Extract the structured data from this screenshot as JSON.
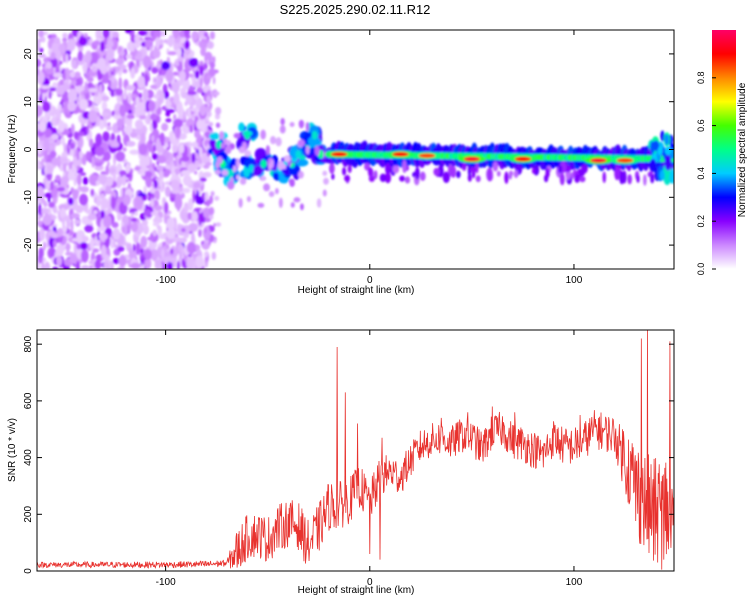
{
  "page_title": "S225.2025.290.02.11.R12",
  "chart_data": [
    {
      "type": "heatmap",
      "title": "S225.2025.290.02.11.R12",
      "xlabel": "Height of straight line (km)",
      "ylabel": "Frequency (Hz)",
      "xlim": [
        -163,
        149
      ],
      "ylim": [
        -25,
        25
      ],
      "xticks": [
        -100,
        0,
        100
      ],
      "yticks": [
        -20,
        -10,
        0,
        10,
        20
      ],
      "colorbar": {
        "label": "Normalized spectral amplitude",
        "range": [
          0,
          1
        ],
        "ticks": [
          0.0,
          0.2,
          0.4,
          0.6,
          0.8
        ],
        "colors": [
          "#ffffff",
          "#cc88ff",
          "#8800ff",
          "#0000ff",
          "#00ccff",
          "#00ff88",
          "#44ff00",
          "#ffff00",
          "#ff8800",
          "#ff0000",
          "#ff0066"
        ]
      },
      "noise_region_x": [
        -163,
        -78
      ],
      "features": [
        {
          "name": "noise_scatter",
          "x_range": [
            -163,
            -78
          ],
          "f_range": [
            -25,
            25
          ],
          "amplitude": 0.1
        },
        {
          "name": "early_blobs",
          "points": [
            [
              -74,
              1
            ],
            [
              -72,
              -3
            ],
            [
              -68,
              -5
            ],
            [
              -60,
              3
            ],
            [
              -58,
              -4
            ],
            [
              -52,
              -3
            ],
            [
              -44,
              -4
            ],
            [
              -38,
              -3
            ],
            [
              -35,
              -1
            ],
            [
              -30,
              1
            ],
            [
              -27,
              3
            ],
            [
              -24,
              -1
            ]
          ]
        },
        {
          "name": "main_track",
          "x_range": [
            -20,
            149
          ],
          "f_start": -1,
          "f_end": -2,
          "amplitude": 0.6
        },
        {
          "name": "peaks",
          "points": [
            [
              -15,
              -1,
              0.9
            ],
            [
              15,
              -1,
              0.9
            ],
            [
              28,
              -1.3,
              0.85
            ],
            [
              50,
              -2,
              0.95
            ],
            [
              75,
              -2,
              0.9
            ],
            [
              112,
              -2.3,
              0.95
            ],
            [
              125,
              -2.3,
              0.85
            ]
          ]
        }
      ]
    },
    {
      "type": "line",
      "xlabel": "Height of straight line (km)",
      "ylabel": "SNR (10 * v/v)",
      "xlim": [
        -163,
        149
      ],
      "ylim": [
        0,
        850
      ],
      "xticks": [
        -100,
        0,
        100
      ],
      "yticks": [
        0,
        200,
        400,
        600,
        800
      ],
      "color": "#e8322e",
      "control_points": [
        [
          -163,
          22
        ],
        [
          -140,
          22
        ],
        [
          -100,
          22
        ],
        [
          -80,
          24
        ],
        [
          -70,
          28
        ],
        [
          -65,
          70
        ],
        [
          -60,
          120
        ],
        [
          -55,
          130
        ],
        [
          -50,
          110
        ],
        [
          -45,
          150
        ],
        [
          -40,
          170
        ],
        [
          -35,
          160
        ],
        [
          -30,
          90
        ],
        [
          -25,
          150
        ],
        [
          -20,
          230
        ],
        [
          -15,
          230
        ],
        [
          -10,
          250
        ],
        [
          -5,
          300
        ],
        [
          0,
          240
        ],
        [
          5,
          330
        ],
        [
          10,
          350
        ],
        [
          15,
          330
        ],
        [
          20,
          390
        ],
        [
          25,
          440
        ],
        [
          30,
          460
        ],
        [
          35,
          470
        ],
        [
          40,
          450
        ],
        [
          45,
          480
        ],
        [
          50,
          470
        ],
        [
          55,
          430
        ],
        [
          60,
          490
        ],
        [
          65,
          500
        ],
        [
          70,
          460
        ],
        [
          75,
          450
        ],
        [
          80,
          430
        ],
        [
          85,
          410
        ],
        [
          90,
          470
        ],
        [
          95,
          440
        ],
        [
          100,
          440
        ],
        [
          105,
          460
        ],
        [
          110,
          500
        ],
        [
          115,
          490
        ],
        [
          120,
          480
        ],
        [
          125,
          400
        ],
        [
          130,
          300
        ],
        [
          135,
          230
        ],
        [
          140,
          200
        ],
        [
          145,
          220
        ],
        [
          149,
          180
        ]
      ],
      "spikes": [
        [
          -16,
          790
        ],
        [
          -12,
          630
        ],
        [
          -6,
          520
        ],
        [
          6,
          470
        ],
        [
          35,
          540
        ],
        [
          48,
          560
        ],
        [
          60,
          580
        ],
        [
          71,
          560
        ],
        [
          103,
          550
        ],
        [
          112,
          540
        ],
        [
          122,
          470
        ],
        [
          133,
          820
        ],
        [
          136,
          850
        ],
        [
          141,
          760
        ],
        [
          147,
          810
        ],
        [
          5,
          40
        ],
        [
          0,
          60
        ],
        [
          141,
          30
        ],
        [
          144,
          40
        ]
      ],
      "noise_levels": [
        [
          -163,
          10
        ],
        [
          -70,
          12
        ],
        [
          -65,
          80
        ],
        [
          -20,
          90
        ],
        [
          20,
          60
        ],
        [
          120,
          70
        ],
        [
          130,
          180
        ],
        [
          149,
          220
        ]
      ]
    }
  ]
}
